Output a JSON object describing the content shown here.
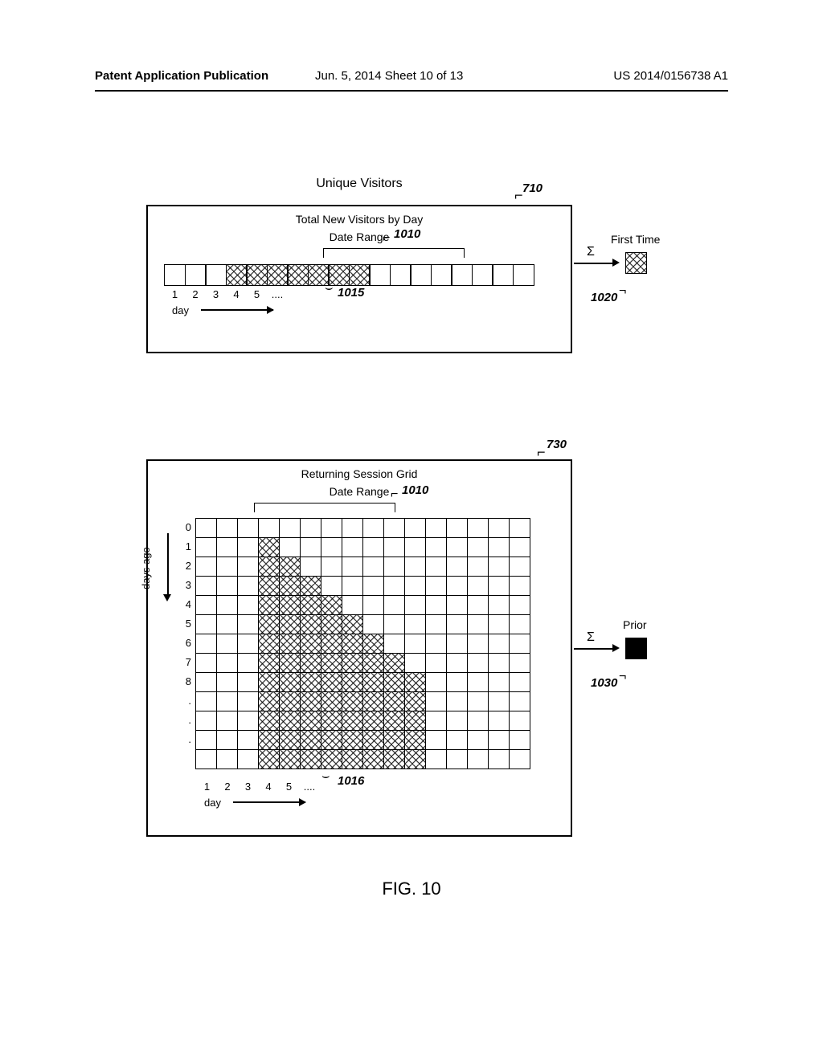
{
  "header": {
    "left": "Patent Application Publication",
    "middle": "Jun. 5, 2014  Sheet 10 of 13",
    "right": "US 2014/0156738 A1"
  },
  "figure_label": "FIG. 10",
  "refs": {
    "r710": "710",
    "r730": "730",
    "r1010": "1010",
    "r1015": "1015",
    "r1016": "1016",
    "r1020": "1020",
    "r1030": "1030"
  },
  "panel1": {
    "main_title": "Unique Visitors",
    "subtitle1": "Total New Visitors by Day",
    "subtitle2": "Date Range",
    "cols": 18,
    "hatched": [
      3,
      4,
      5,
      6,
      7,
      8,
      9
    ],
    "xlabels": [
      "1",
      "2",
      "3",
      "4",
      "5",
      "...."
    ],
    "day_label": "day",
    "sum_symbol": "Σ",
    "output_label": "First Time",
    "output_fill": "hatch"
  },
  "panel2": {
    "title": "Returning Session Grid",
    "subtitle": "Date Range",
    "cols": 16,
    "rows": 13,
    "ylabels": [
      "0",
      "1",
      "2",
      "3",
      "4",
      "5",
      "6",
      "7",
      "8",
      ".",
      ".",
      "."
    ],
    "yaxis_label": "days ago",
    "hatched_rows": {
      "0": [],
      "1": [
        3
      ],
      "2": [
        3,
        4
      ],
      "3": [
        3,
        4,
        5
      ],
      "4": [
        3,
        4,
        5,
        6
      ],
      "5": [
        3,
        4,
        5,
        6,
        7
      ],
      "6": [
        3,
        4,
        5,
        6,
        7,
        8
      ],
      "7": [
        3,
        4,
        5,
        6,
        7,
        8,
        9
      ],
      "8": [
        3,
        4,
        5,
        6,
        7,
        8,
        9,
        10
      ],
      "9": [
        3,
        4,
        5,
        6,
        7,
        8,
        9,
        10
      ],
      "10": [
        3,
        4,
        5,
        6,
        7,
        8,
        9,
        10
      ],
      "11": [
        3,
        4,
        5,
        6,
        7,
        8,
        9,
        10
      ],
      "12": [
        3,
        4,
        5,
        6,
        7,
        8,
        9,
        10
      ]
    },
    "xlabels": [
      "1",
      "2",
      "3",
      "4",
      "5",
      "...."
    ],
    "day_label": "day",
    "sum_symbol": "Σ",
    "output_label": "Prior",
    "output_fill": "solid"
  },
  "colors": {
    "stroke": "#000000",
    "background": "#ffffff",
    "solid_fill": "#000000"
  }
}
